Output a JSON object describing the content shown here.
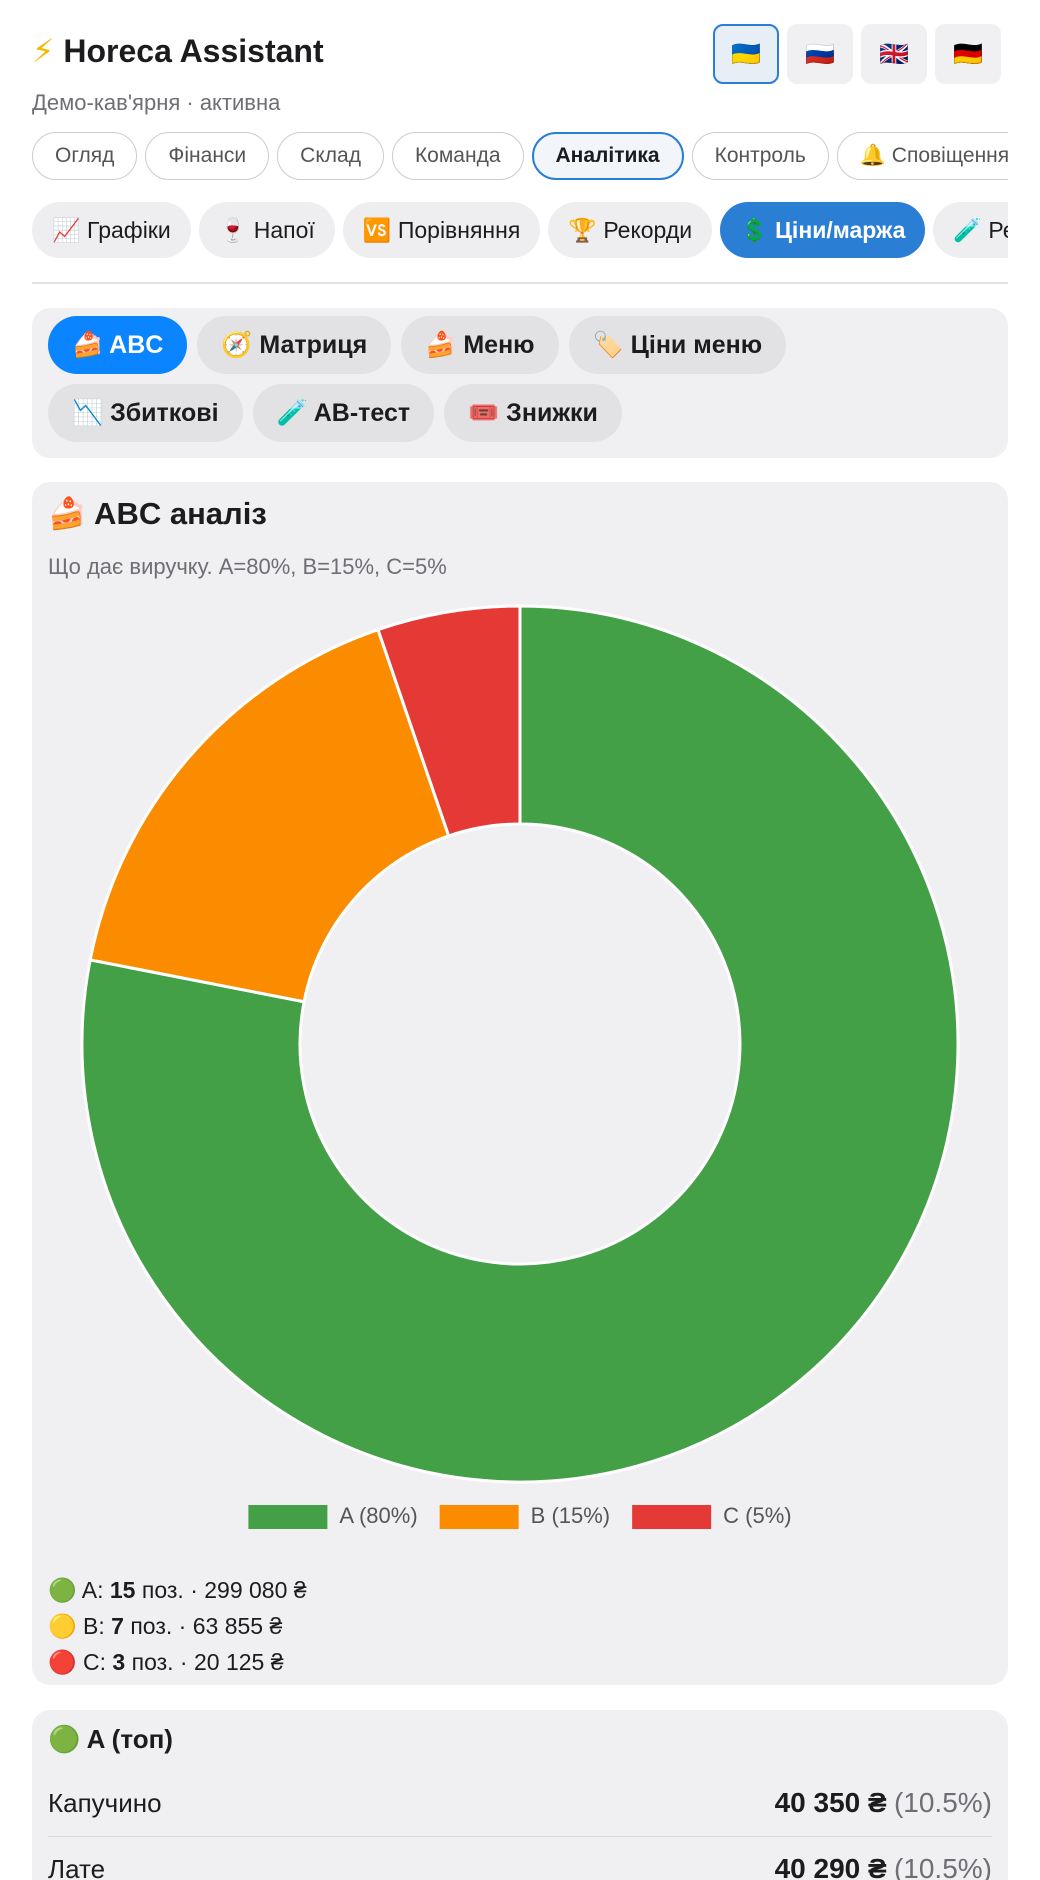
{
  "header": {
    "icon": "⚡",
    "title": "Horeca Assistant",
    "subtitle": "Демо-кав'ярня · активна"
  },
  "languages": [
    "🇺🇦",
    "🇷🇺",
    "🇬🇧",
    "🇩🇪"
  ],
  "tabs": [
    "Огляд",
    "Фінанси",
    "Склад",
    "Команда",
    "Аналітика",
    "Контроль",
    "🔔 Сповіщення"
  ],
  "subtabs": [
    "📈 Графіки",
    "🍷 Напої",
    "🆚 Порівняння",
    "🏆 Рекорди",
    "💲 Ціни/маржа",
    "🧪 Ре"
  ],
  "sections": [
    "🍰 ABC",
    "🧭 Матриця",
    "🍰 Меню",
    "🏷️ Ціни меню",
    "📉 Збиткові",
    "🧪 AB-тест",
    "🎟️ Знижки"
  ],
  "chart_data": {
    "type": "pie",
    "title": "🍰 ABC аналіз",
    "subtitle": "Що дає виручку. A=80%, B=15%, C=5%",
    "categories": [
      "A (80%)",
      "B (15%)",
      "C (5%)"
    ],
    "values": [
      299080,
      63855,
      20125
    ],
    "colors": [
      "#43a047",
      "#fb8c00",
      "#e53935"
    ],
    "donut": true,
    "legend": "bottom"
  },
  "summary": [
    {
      "icon": "🟢",
      "label": "A:",
      "count": "15",
      "unit": "поз. ·",
      "amount": "299 080 ₴"
    },
    {
      "icon": "🟡",
      "label": "B:",
      "count": "7",
      "unit": "поз. ·",
      "amount": "63 855 ₴"
    },
    {
      "icon": "🔴",
      "label": "C:",
      "count": "3",
      "unit": "поз. ·",
      "amount": "20 125 ₴"
    }
  ],
  "top_list": {
    "title": "🟢 A (топ)",
    "rows": [
      {
        "name": "Капучино",
        "amount": "40 350 ₴",
        "share": "(10.5%)"
      },
      {
        "name": "Лате",
        "amount": "40 290 ₴",
        "share": "(10.5%)"
      }
    ]
  }
}
